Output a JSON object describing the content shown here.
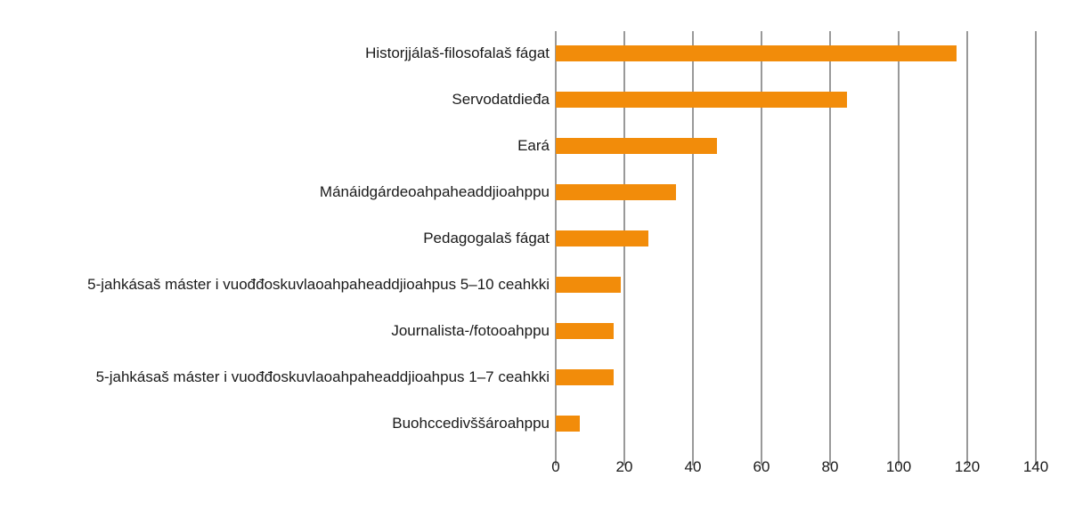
{
  "chart_data": {
    "type": "bar",
    "orientation": "horizontal",
    "title": "",
    "xlabel": "",
    "ylabel": "",
    "categories": [
      "Historjjálaš-filosofalaš fágat",
      "Servodatdieđa",
      "Eará",
      "Mánáidgárdeoahpaheaddjioahppu",
      "Pedagogalaš fágat",
      "5-jahkásaš máster i vuođđoskuvlaoahpaheaddjioahpus 5–10 ceahkki",
      "Journalista-/fotooahppu",
      "5-jahkásaš máster i vuođđoskuvlaoahpaheaddjioahpus 1–7 ceahkki",
      "Buohccedivššároahppu"
    ],
    "values": [
      117,
      85,
      47,
      35,
      27,
      19,
      17,
      17,
      7
    ],
    "xlim": [
      0,
      140
    ],
    "xticks": [
      "0",
      "20",
      "40",
      "60",
      "80",
      "100",
      "120",
      "140"
    ],
    "grid": true,
    "legend": null,
    "bar_color": "#f28c0a",
    "grid_color": "#999999"
  }
}
